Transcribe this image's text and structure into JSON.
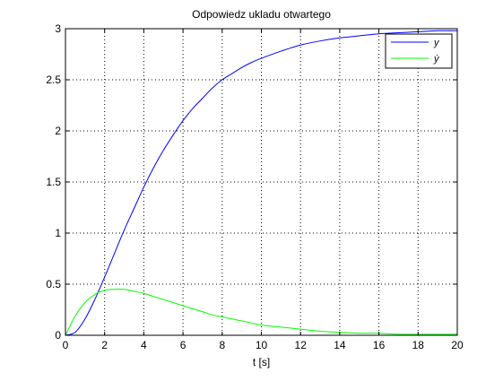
{
  "chart_data": {
    "type": "line",
    "title": "Odpowiedz ukladu otwartego",
    "xlabel": "t [s]",
    "ylabel": "",
    "xlim": [
      0,
      20
    ],
    "ylim": [
      0,
      3
    ],
    "xticks": [
      0,
      2,
      4,
      6,
      8,
      10,
      12,
      14,
      16,
      18,
      20
    ],
    "yticks": [
      0,
      0.5,
      1,
      1.5,
      2,
      2.5,
      3
    ],
    "xtick_labels": [
      "0",
      "2",
      "4",
      "6",
      "8",
      "10",
      "12",
      "14",
      "16",
      "18",
      "20"
    ],
    "ytick_labels": [
      "0",
      "0.5",
      "1",
      "1.5",
      "2",
      "2.5",
      "3"
    ],
    "grid": true,
    "legend_position": "top-right",
    "series": [
      {
        "name": "y",
        "color": "#0000ff",
        "x": [
          0,
          0.5,
          1,
          1.5,
          2,
          2.5,
          3,
          3.5,
          4,
          4.5,
          5,
          5.5,
          6,
          6.5,
          7,
          7.5,
          8,
          8.5,
          9,
          9.5,
          10,
          11,
          12,
          13,
          14,
          15,
          16,
          17,
          18,
          19,
          20
        ],
        "values": [
          0,
          0.03,
          0.16,
          0.35,
          0.57,
          0.8,
          1.03,
          1.24,
          1.45,
          1.64,
          1.81,
          1.96,
          2.1,
          2.22,
          2.32,
          2.42,
          2.5,
          2.56,
          2.62,
          2.67,
          2.71,
          2.78,
          2.84,
          2.88,
          2.91,
          2.93,
          2.95,
          2.96,
          2.97,
          2.98,
          2.98
        ]
      },
      {
        "name": "ẏ",
        "color": "#00ff00",
        "x": [
          0,
          0.5,
          1,
          1.5,
          2,
          2.5,
          3,
          3.5,
          4,
          4.5,
          5,
          5.5,
          6,
          6.5,
          7,
          7.5,
          8,
          8.5,
          9,
          9.5,
          10,
          11,
          12,
          13,
          14,
          15,
          16,
          17,
          18,
          19,
          20
        ],
        "values": [
          0,
          0.19,
          0.32,
          0.4,
          0.44,
          0.45,
          0.45,
          0.43,
          0.41,
          0.38,
          0.35,
          0.32,
          0.29,
          0.26,
          0.23,
          0.2,
          0.18,
          0.16,
          0.14,
          0.12,
          0.1,
          0.08,
          0.06,
          0.04,
          0.03,
          0.02,
          0.02,
          0.01,
          0.01,
          0.01,
          0.01
        ]
      }
    ]
  }
}
